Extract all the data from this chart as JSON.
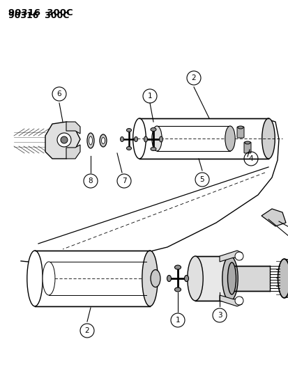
{
  "title": "90316  300C",
  "bg": "#ffffff",
  "lc": "#000000",
  "fig_w": 4.14,
  "fig_h": 5.33,
  "dpi": 100
}
